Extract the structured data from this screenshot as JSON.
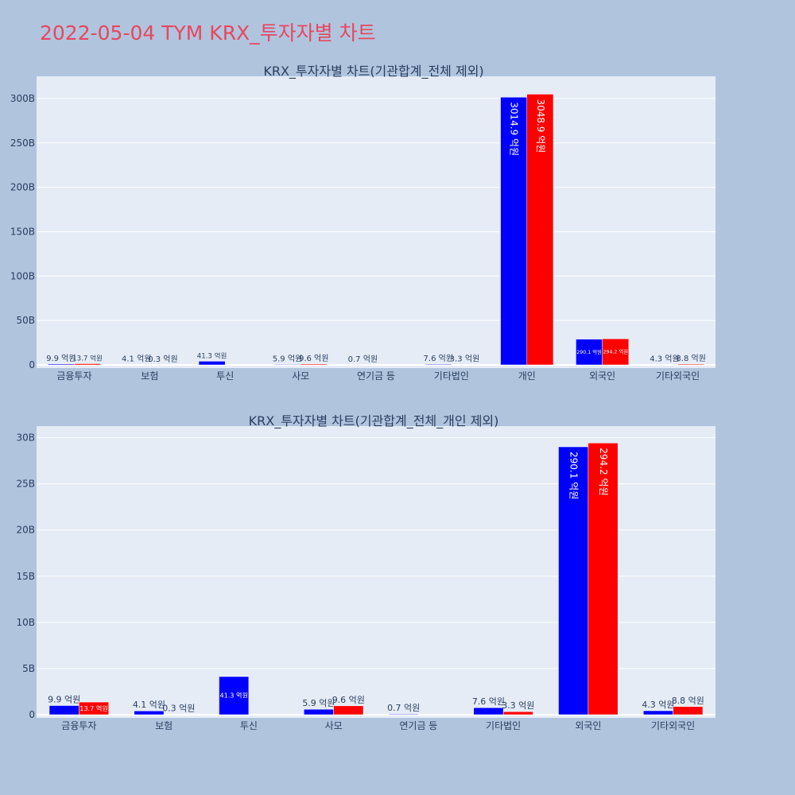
{
  "page_title": "2022-05-04 TYM KRX_투자자별 차트",
  "colors": {
    "buy": "#0000ff",
    "sell": "#ff0000",
    "plot_bg": "#e5ecf6",
    "page_bg": "#b0c4de",
    "title": "#e8475f",
    "text": "#2a3f5f"
  },
  "chart_data": [
    {
      "type": "bar",
      "title": "KRX_투자자별 차트(기관합계_전체 제외)",
      "categories": [
        "금융투자",
        "보험",
        "투신",
        "사모",
        "연기금 등",
        "기타법인",
        "개인",
        "외국인",
        "기타외국인"
      ],
      "series": [
        {
          "values": [
            9.9,
            4.1,
            41.3,
            5.9,
            0.7,
            7.6,
            3014.9,
            290.1,
            4.3
          ],
          "labels": [
            "9.9 억원",
            "4.1 억원",
            "41.3 억원",
            "5.9 억원",
            "0.7 억원",
            "7.6 억원",
            "3014.9 억원",
            "290.1 억원",
            "4.3 억원"
          ]
        },
        {
          "values": [
            13.7,
            0.3,
            0,
            9.6,
            0,
            3.3,
            3048.9,
            294.2,
            8.8
          ],
          "labels": [
            "13.7 억원",
            "0.3 억원",
            "",
            "9.6 억원",
            "",
            "3.3 억원",
            "3048.9 억원",
            "294.2 억원",
            "8.8 억원"
          ]
        }
      ],
      "yticks": [
        "0",
        "50B",
        "100B",
        "150B",
        "200B",
        "250B",
        "300B"
      ],
      "ylim": [
        0,
        3250
      ],
      "grid": true
    },
    {
      "type": "bar",
      "title": "KRX_투자자별 차트(기관합계_전체_개인 제외)",
      "categories": [
        "금융투자",
        "보험",
        "투신",
        "사모",
        "연기금 등",
        "기타법인",
        "외국인",
        "기타외국인"
      ],
      "series": [
        {
          "values": [
            9.9,
            4.1,
            41.3,
            5.9,
            0.7,
            7.6,
            290.1,
            4.3
          ],
          "labels": [
            "9.9 억원",
            "4.1 억원",
            "41.3 억원",
            "5.9 억원",
            "0.7 억원",
            "7.6 억원",
            "290.1 억원",
            "4.3 억원"
          ]
        },
        {
          "values": [
            13.7,
            0.3,
            0,
            9.6,
            0,
            3.3,
            294.2,
            8.8
          ],
          "labels": [
            "13.7 억원",
            "0.3 억원",
            "",
            "9.6 억원",
            "",
            "3.3 억원",
            "294.2 억원",
            "8.8 억원"
          ]
        }
      ],
      "yticks": [
        "0",
        "5B",
        "10B",
        "15B",
        "20B",
        "25B",
        "30B"
      ],
      "ylim": [
        0,
        312.5
      ],
      "grid": true
    }
  ]
}
